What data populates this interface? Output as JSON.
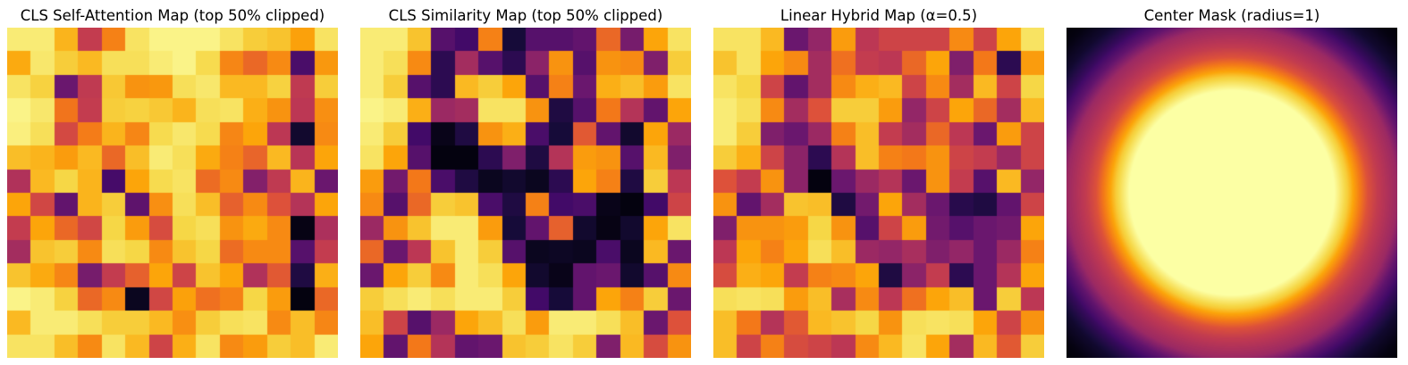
{
  "figure": {
    "background": "#ffffff",
    "colormap": "inferno",
    "grid_size": 14,
    "colormap_anchors": [
      [
        0,
        0,
        4
      ],
      [
        22,
        11,
        57
      ],
      [
        66,
        10,
        104
      ],
      [
        106,
        23,
        110
      ],
      [
        147,
        38,
        103
      ],
      [
        188,
        55,
        84
      ],
      [
        221,
        81,
        58
      ],
      [
        243,
        120,
        25
      ],
      [
        252,
        165,
        10
      ],
      [
        246,
        215,
        70
      ],
      [
        252,
        255,
        164
      ]
    ]
  },
  "chart_data": [
    {
      "type": "heatmap",
      "title": "CLS Self-Attention Map (top 50% clipped)",
      "grid": [
        14,
        14
      ],
      "colormap": "inferno",
      "values": [
        [
          0.95,
          0.95,
          0.83,
          0.52,
          0.72,
          0.93,
          0.97,
          0.97,
          0.97,
          0.93,
          0.88,
          0.86,
          0.79,
          0.93
        ],
        [
          0.81,
          0.94,
          0.88,
          0.84,
          0.92,
          0.92,
          0.95,
          0.97,
          0.91,
          0.73,
          0.66,
          0.74,
          0.22,
          0.77
        ],
        [
          0.93,
          0.89,
          0.3,
          0.51,
          0.87,
          0.76,
          0.77,
          0.92,
          0.94,
          0.84,
          0.84,
          0.89,
          0.51,
          0.88
        ],
        [
          0.97,
          0.94,
          0.69,
          0.52,
          0.88,
          0.89,
          0.87,
          0.83,
          0.92,
          0.93,
          0.82,
          0.76,
          0.5,
          0.75
        ],
        [
          0.96,
          0.92,
          0.57,
          0.71,
          0.83,
          0.73,
          0.91,
          0.94,
          0.91,
          0.73,
          0.8,
          0.5,
          0.08,
          0.74
        ],
        [
          0.85,
          0.83,
          0.78,
          0.84,
          0.66,
          0.85,
          0.95,
          0.92,
          0.81,
          0.72,
          0.65,
          0.84,
          0.49,
          0.8
        ],
        [
          0.47,
          0.84,
          0.9,
          0.83,
          0.21,
          0.8,
          0.91,
          0.93,
          0.67,
          0.74,
          0.36,
          0.51,
          0.83,
          0.3
        ],
        [
          0.8,
          0.56,
          0.28,
          0.83,
          0.88,
          0.27,
          0.75,
          0.92,
          0.85,
          0.64,
          0.74,
          0.6,
          0.48,
          0.8
        ],
        [
          0.52,
          0.8,
          0.66,
          0.56,
          0.9,
          0.78,
          0.58,
          0.9,
          0.92,
          0.76,
          0.81,
          0.74,
          0.03,
          0.46
        ],
        [
          0.44,
          0.86,
          0.88,
          0.74,
          0.92,
          0.9,
          0.74,
          0.86,
          0.9,
          0.67,
          0.74,
          0.74,
          0.25,
          0.52
        ],
        [
          0.86,
          0.81,
          0.73,
          0.33,
          0.52,
          0.64,
          0.8,
          0.55,
          0.86,
          0.8,
          0.47,
          0.62,
          0.12,
          0.82
        ],
        [
          0.97,
          0.95,
          0.89,
          0.66,
          0.74,
          0.05,
          0.56,
          0.79,
          0.68,
          0.72,
          0.9,
          0.78,
          0.02,
          0.66
        ],
        [
          0.84,
          0.95,
          0.95,
          0.92,
          0.88,
          0.88,
          0.84,
          0.75,
          0.88,
          0.92,
          0.93,
          0.74,
          0.85,
          0.73
        ],
        [
          0.93,
          0.93,
          0.85,
          0.74,
          0.93,
          0.84,
          0.55,
          0.82,
          0.93,
          0.74,
          0.78,
          0.88,
          0.85,
          0.95
        ]
      ]
    },
    {
      "type": "heatmap",
      "title": "CLS Similarity Map (top 50% clipped)",
      "grid": [
        14,
        14
      ],
      "colormap": "inferno",
      "values": [
        [
          0.95,
          0.95,
          0.86,
          0.25,
          0.2,
          0.72,
          0.1,
          0.25,
          0.25,
          0.28,
          0.66,
          0.33,
          0.8,
          0.93
        ],
        [
          0.95,
          0.92,
          0.74,
          0.15,
          0.44,
          0.25,
          0.15,
          0.38,
          0.76,
          0.25,
          0.76,
          0.74,
          0.35,
          0.88
        ],
        [
          0.95,
          0.88,
          0.25,
          0.15,
          0.84,
          0.88,
          0.8,
          0.25,
          0.72,
          0.3,
          0.82,
          0.85,
          0.78,
          0.93
        ],
        [
          0.97,
          0.95,
          0.82,
          0.42,
          0.44,
          0.93,
          0.93,
          0.76,
          0.12,
          0.25,
          0.7,
          0.48,
          0.28,
          0.8
        ],
        [
          0.95,
          0.88,
          0.2,
          0.04,
          0.12,
          0.76,
          0.82,
          0.22,
          0.1,
          0.62,
          0.28,
          0.08,
          0.8,
          0.42
        ],
        [
          0.93,
          0.8,
          0.25,
          0.02,
          0.02,
          0.15,
          0.35,
          0.12,
          0.48,
          0.78,
          0.76,
          0.25,
          0.84,
          0.35
        ],
        [
          0.78,
          0.32,
          0.7,
          0.22,
          0.12,
          0.05,
          0.08,
          0.05,
          0.15,
          0.8,
          0.72,
          0.12,
          0.88,
          0.5
        ],
        [
          0.74,
          0.25,
          0.66,
          0.88,
          0.86,
          0.22,
          0.12,
          0.72,
          0.2,
          0.22,
          0.04,
          0.02,
          0.2,
          0.55
        ],
        [
          0.42,
          0.76,
          0.86,
          0.95,
          0.95,
          0.78,
          0.1,
          0.28,
          0.64,
          0.08,
          0.03,
          0.08,
          0.8,
          0.93
        ],
        [
          0.66,
          0.3,
          0.5,
          0.86,
          0.95,
          0.88,
          0.25,
          0.05,
          0.06,
          0.05,
          0.22,
          0.05,
          0.84,
          0.3
        ],
        [
          0.3,
          0.8,
          0.88,
          0.74,
          0.95,
          0.92,
          0.8,
          0.08,
          0.04,
          0.28,
          0.3,
          0.08,
          0.25,
          0.74
        ],
        [
          0.88,
          0.92,
          0.95,
          0.92,
          0.95,
          0.95,
          0.88,
          0.2,
          0.1,
          0.28,
          0.8,
          0.72,
          0.88,
          0.3
        ],
        [
          0.85,
          0.55,
          0.25,
          0.42,
          0.8,
          0.85,
          0.92,
          0.78,
          0.95,
          0.95,
          0.92,
          0.85,
          0.3,
          0.6
        ],
        [
          0.8,
          0.28,
          0.7,
          0.48,
          0.28,
          0.3,
          0.86,
          0.88,
          0.93,
          0.88,
          0.35,
          0.84,
          0.58,
          0.76
        ]
      ]
    },
    {
      "type": "heatmap",
      "title": "Linear Hybrid Map (α=0.5)",
      "grid": [
        14,
        14
      ],
      "colormap": "inferno",
      "values": [
        [
          0.93,
          0.93,
          0.84,
          0.3,
          0.4,
          0.78,
          0.5,
          0.55,
          0.55,
          0.55,
          0.74,
          0.55,
          0.8,
          0.93
        ],
        [
          0.86,
          0.93,
          0.8,
          0.74,
          0.44,
          0.68,
          0.52,
          0.5,
          0.66,
          0.8,
          0.35,
          0.7,
          0.15,
          0.78
        ],
        [
          0.93,
          0.9,
          0.55,
          0.28,
          0.44,
          0.74,
          0.82,
          0.84,
          0.55,
          0.74,
          0.44,
          0.84,
          0.55,
          0.9
        ],
        [
          0.95,
          0.92,
          0.74,
          0.44,
          0.6,
          0.88,
          0.88,
          0.78,
          0.4,
          0.55,
          0.8,
          0.66,
          0.44,
          0.84
        ],
        [
          0.95,
          0.88,
          0.35,
          0.3,
          0.42,
          0.72,
          0.85,
          0.52,
          0.44,
          0.66,
          0.5,
          0.3,
          0.78,
          0.55
        ],
        [
          0.88,
          0.82,
          0.55,
          0.38,
          0.15,
          0.48,
          0.85,
          0.72,
          0.7,
          0.76,
          0.55,
          0.52,
          0.42,
          0.55
        ],
        [
          0.6,
          0.52,
          0.76,
          0.38,
          0.02,
          0.3,
          0.42,
          0.48,
          0.3,
          0.76,
          0.52,
          0.25,
          0.84,
          0.4
        ],
        [
          0.76,
          0.28,
          0.44,
          0.86,
          0.85,
          0.12,
          0.32,
          0.8,
          0.44,
          0.3,
          0.14,
          0.12,
          0.28,
          0.55
        ],
        [
          0.35,
          0.76,
          0.76,
          0.78,
          0.9,
          0.76,
          0.25,
          0.55,
          0.78,
          0.32,
          0.25,
          0.3,
          0.32,
          0.8
        ],
        [
          0.5,
          0.8,
          0.72,
          0.8,
          0.92,
          0.85,
          0.42,
          0.4,
          0.45,
          0.35,
          0.4,
          0.3,
          0.42,
          0.72
        ],
        [
          0.58,
          0.82,
          0.8,
          0.52,
          0.72,
          0.74,
          0.8,
          0.12,
          0.38,
          0.52,
          0.15,
          0.3,
          0.48,
          0.8
        ],
        [
          0.92,
          0.93,
          0.92,
          0.78,
          0.85,
          0.45,
          0.74,
          0.5,
          0.68,
          0.8,
          0.85,
          0.3,
          0.88,
          0.5
        ],
        [
          0.85,
          0.7,
          0.48,
          0.62,
          0.84,
          0.86,
          0.9,
          0.76,
          0.92,
          0.93,
          0.92,
          0.8,
          0.55,
          0.76
        ],
        [
          0.85,
          0.55,
          0.72,
          0.58,
          0.55,
          0.5,
          0.74,
          0.84,
          0.93,
          0.8,
          0.44,
          0.84,
          0.62,
          0.88
        ]
      ]
    },
    {
      "type": "radial_mask",
      "title": "Center Mask (radius=1)",
      "radius": 1,
      "colormap": "inferno",
      "profile": [
        [
          0.0,
          1.0
        ],
        [
          0.62,
          1.0
        ],
        [
          0.7,
          0.88
        ],
        [
          0.76,
          0.74
        ],
        [
          0.82,
          0.6
        ],
        [
          0.88,
          0.52
        ],
        [
          0.95,
          0.46
        ],
        [
          1.0,
          0.42
        ],
        [
          1.07,
          0.28
        ],
        [
          1.14,
          0.18
        ],
        [
          1.24,
          0.08
        ],
        [
          1.34,
          0.025
        ],
        [
          1.45,
          0.0
        ]
      ]
    }
  ]
}
